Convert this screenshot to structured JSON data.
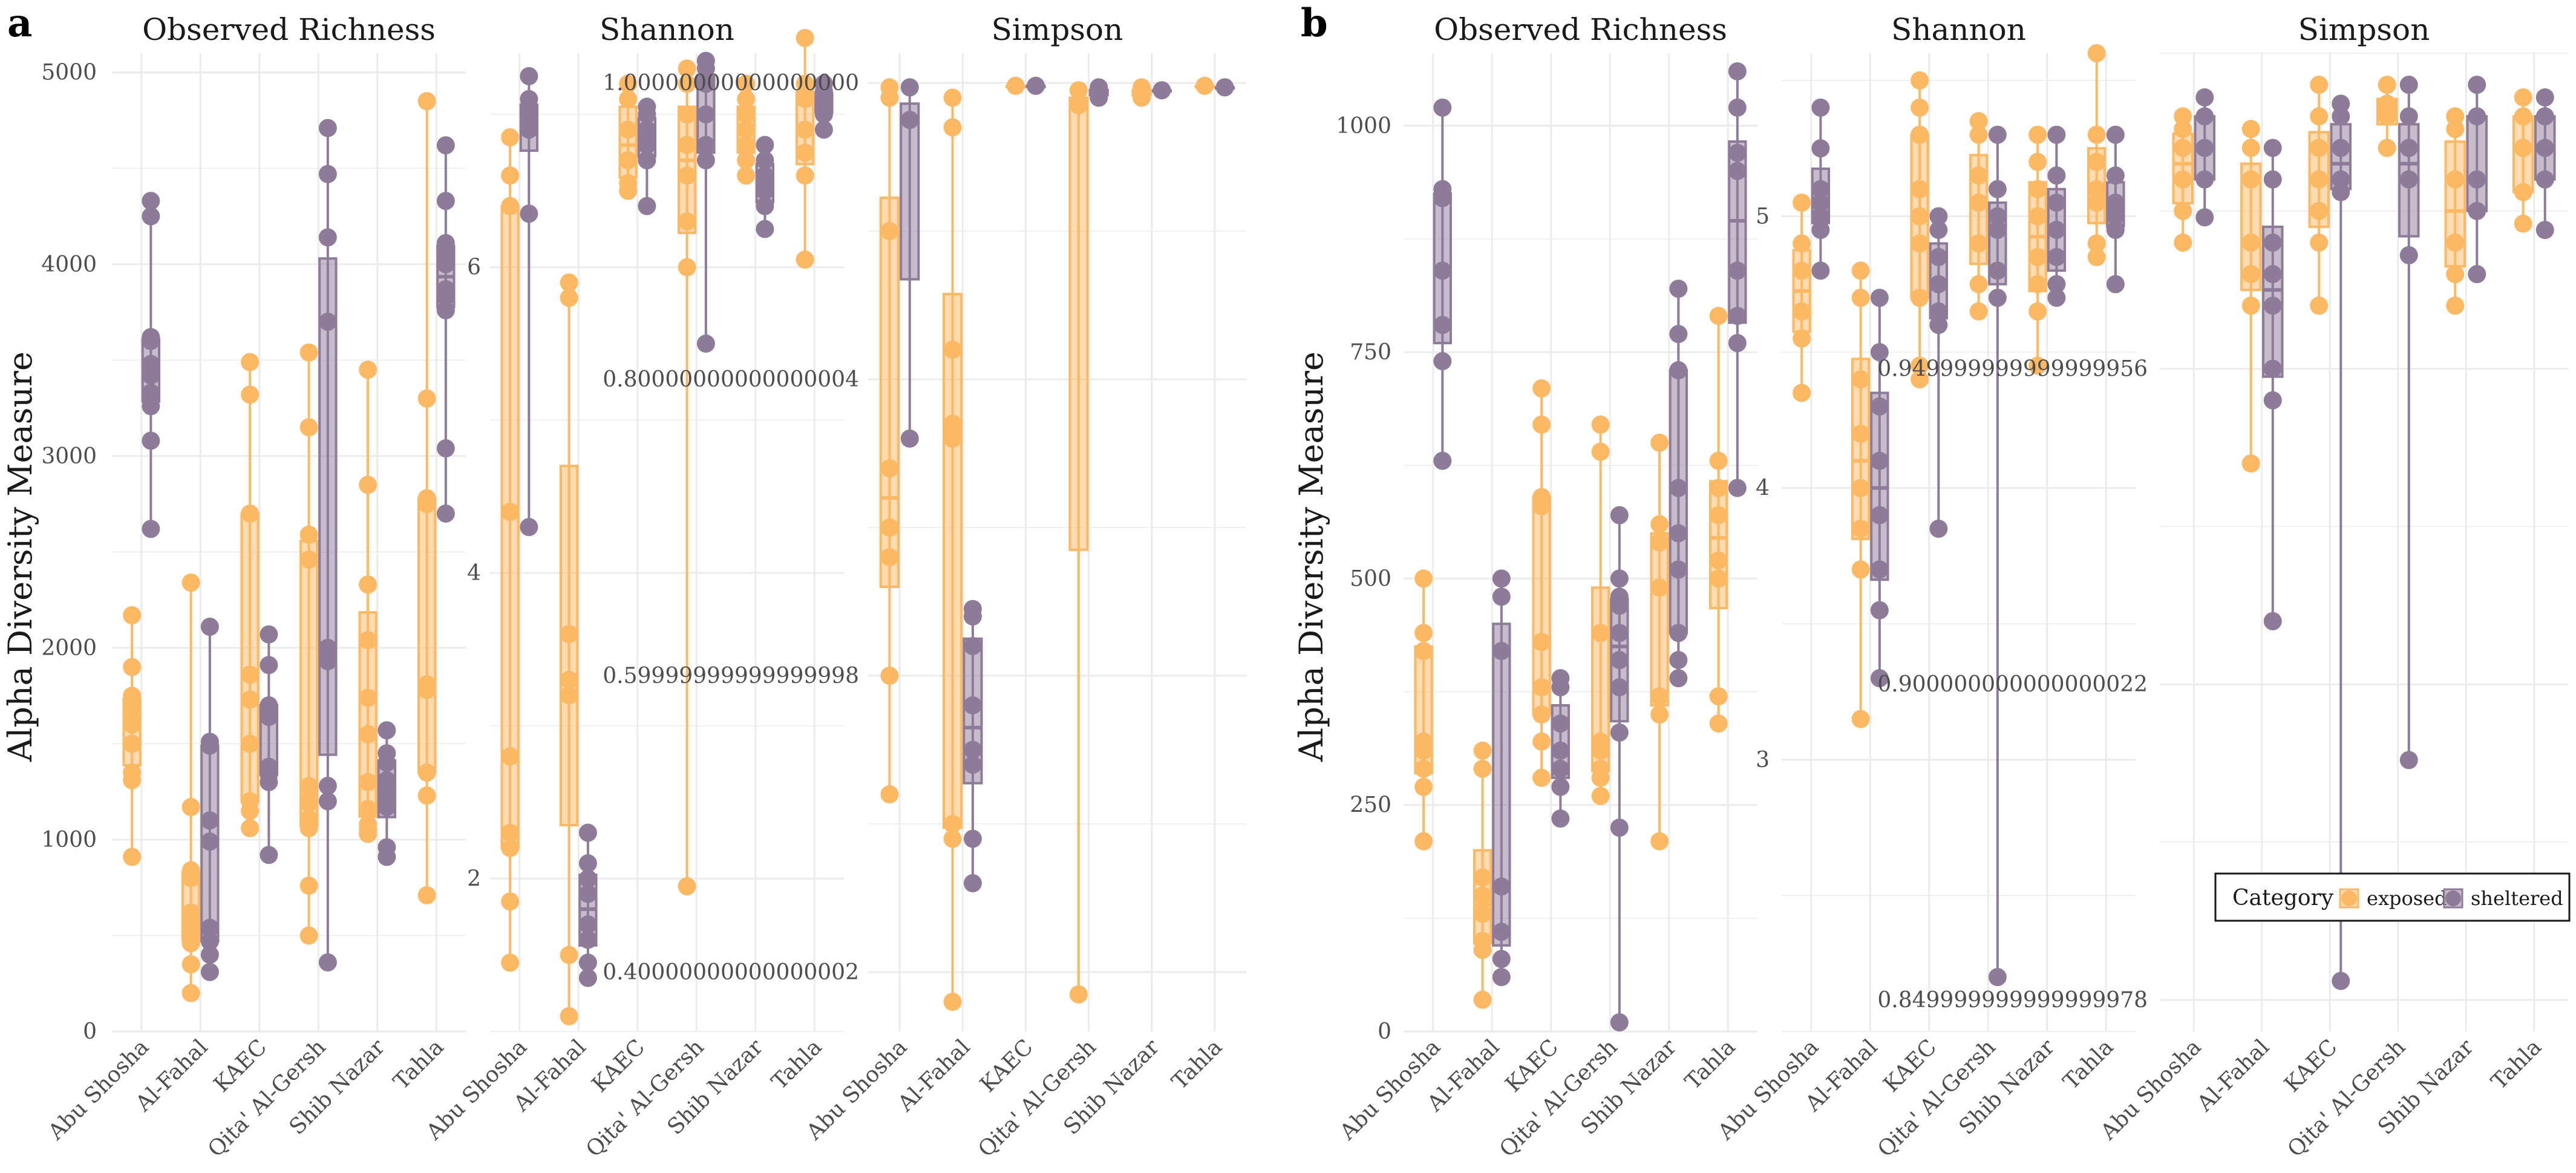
{
  "figure": {
    "panel_labels": [
      "a",
      "b"
    ],
    "y_axis_label": "Alpha Diversity Measure",
    "colors": {
      "exposed": "#FDB863",
      "sheltered": "#8E7A99",
      "grid": "#EBEBEB",
      "tick_text": "#4D4D4D"
    },
    "legend": {
      "title": "Category",
      "items": [
        "exposed",
        "sheltered"
      ]
    }
  },
  "chart_data": [
    {
      "type": "box",
      "panel": "a",
      "facet": "Observed Richness",
      "categories": [
        "Abu Shosha",
        "Al-Fahal",
        "KAEC",
        "Qita' Al-Gersh",
        "Shib Nazar",
        "Tahla"
      ],
      "ylim": [
        0,
        5100
      ],
      "yticks": [
        0,
        1000,
        2000,
        3000,
        4000,
        5000
      ],
      "series": [
        {
          "name": "exposed",
          "points": [
            [
              910,
              1310,
              1350,
              1500,
              1600,
              1620,
              1690,
              1750,
              1900,
              2170
            ],
            [
              200,
              350,
              460,
              520,
              580,
              620,
              800,
              840,
              1170,
              2340
            ],
            [
              1060,
              1150,
              1200,
              1500,
              1730,
              1860,
              2700,
              3320,
              3490
            ],
            [
              500,
              760,
              1060,
              1110,
              1190,
              1280,
              2460,
              2590,
              3150,
              3540
            ],
            [
              1030,
              1050,
              1080,
              1160,
              1300,
              1550,
              1740,
              2040,
              2330,
              2850,
              3450
            ],
            [
              710,
              1230,
              1350,
              1780,
              1810,
              2750,
              2780,
              3300,
              4850
            ]
          ]
        },
        {
          "name": "sheltered",
          "points": [
            [
              2620,
              3080,
              3260,
              3310,
              3330,
              3420,
              3480,
              3600,
              3620,
              4250,
              4330
            ],
            [
              310,
              400,
              470,
              540,
              990,
              1100,
              1490,
              1510,
              2110
            ],
            [
              920,
              1300,
              1340,
              1380,
              1640,
              1680,
              1700,
              1910,
              2070
            ],
            [
              360,
              1200,
              1280,
              1930,
              1980,
              2000,
              3700,
              4140,
              4470,
              4710
            ],
            [
              910,
              960,
              1170,
              1230,
              1310,
              1400,
              1450,
              1570
            ],
            [
              2700,
              3040,
              3760,
              3830,
              3870,
              4000,
              4050,
              4110,
              4330,
              4620
            ]
          ]
        }
      ]
    },
    {
      "type": "box",
      "panel": "a",
      "facet": "Shannon",
      "categories": [
        "Abu Shosha",
        "Al-Fahal",
        "KAEC",
        "Qita' Al-Gersh",
        "Shib Nazar",
        "Tahla"
      ],
      "ylim": [
        1.0,
        7.4
      ],
      "yticks": [
        2,
        4,
        6
      ],
      "series": [
        {
          "name": "exposed",
          "points": [
            [
              1.45,
              1.85,
              2.2,
              2.3,
              2.8,
              4.4,
              6.4,
              6.6,
              6.85
            ],
            [
              1.1,
              1.5,
              3.2,
              3.3,
              3.6,
              5.8,
              5.9
            ],
            [
              6.5,
              6.55,
              6.7,
              6.9,
              7.1,
              7.2
            ],
            [
              1.95,
              6.0,
              6.3,
              6.6,
              6.8,
              7.0,
              7.2,
              7.3
            ],
            [
              6.6,
              6.7,
              6.8,
              6.9,
              7.0,
              7.1,
              7.2
            ],
            [
              6.05,
              6.6,
              6.75,
              6.9,
              7.1,
              7.2,
              7.5
            ]
          ]
        },
        {
          "name": "sheltered",
          "points": [
            [
              4.3,
              6.35,
              6.9,
              6.95,
              7.0,
              7.05,
              7.1,
              7.25
            ],
            [
              1.35,
              1.45,
              1.6,
              1.7,
              1.9,
              2.0,
              2.1,
              2.3
            ],
            [
              6.4,
              6.7,
              6.8,
              6.9,
              7.0,
              7.05
            ],
            [
              5.5,
              6.7,
              6.8,
              7.0,
              7.2,
              7.3,
              7.35
            ],
            [
              6.25,
              6.4,
              6.5,
              6.6,
              6.7,
              6.8
            ],
            [
              6.9,
              7.0,
              7.05,
              7.1,
              7.15,
              7.2
            ]
          ]
        }
      ]
    },
    {
      "type": "box",
      "panel": "a",
      "facet": "Simpson",
      "categories": [
        "Abu Shosha",
        "Al-Fahal",
        "KAEC",
        "Qita' Al-Gersh",
        "Shib Nazar",
        "Tahla"
      ],
      "ylim": [
        0.36,
        1.02
      ],
      "yticks": [
        0.4,
        0.6,
        0.8,
        1.0
      ],
      "series": [
        {
          "name": "exposed",
          "points": [
            [
              0.52,
              0.6,
              0.68,
              0.7,
              0.74,
              0.9,
              0.99,
              0.997
            ],
            [
              0.38,
              0.49,
              0.5,
              0.76,
              0.77,
              0.82,
              0.97,
              0.99
            ],
            [
              0.998
            ],
            [
              0.385,
              0.985,
              0.995
            ],
            [
              0.99,
              0.997
            ],
            [
              0.998
            ]
          ]
        },
        {
          "name": "sheltered",
          "points": [
            [
              0.76,
              0.975,
              0.997
            ],
            [
              0.46,
              0.49,
              0.54,
              0.55,
              0.58,
              0.62,
              0.64,
              0.645
            ],
            [
              0.998
            ],
            [
              0.99,
              0.997
            ],
            [
              0.995
            ],
            [
              0.997
            ]
          ]
        }
      ]
    },
    {
      "type": "box",
      "panel": "b",
      "facet": "Observed Richness",
      "categories": [
        "Abu Shosha",
        "Al-Fahal",
        "KAEC",
        "Qita' Al-Gersh",
        "Shib Nazar",
        "Tahla"
      ],
      "ylim": [
        0,
        1080
      ],
      "yticks": [
        0,
        250,
        500,
        750,
        1000
      ],
      "series": [
        {
          "name": "exposed",
          "points": [
            [
              210,
              270,
              290,
              310,
              320,
              420,
              440,
              500
            ],
            [
              35,
              90,
              100,
              130,
              150,
              170,
              290,
              310
            ],
            [
              280,
              320,
              350,
              380,
              430,
              580,
              590,
              670,
              710
            ],
            [
              260,
              280,
              290,
              310,
              320,
              440,
              640,
              670
            ],
            [
              210,
              350,
              370,
              490,
              540,
              560,
              650
            ],
            [
              340,
              370,
              500,
              520,
              570,
              600,
              630,
              790
            ]
          ]
        },
        {
          "name": "sheltered",
          "points": [
            [
              630,
              740,
              780,
              840,
              920,
              930,
              1020
            ],
            [
              60,
              80,
              110,
              160,
              420,
              480,
              500
            ],
            [
              235,
              270,
              290,
              310,
              340,
              380,
              390
            ],
            [
              10,
              225,
              330,
              380,
              410,
              440,
              470,
              480,
              500,
              570
            ],
            [
              390,
              410,
              440,
              510,
              550,
              600,
              730,
              770,
              820
            ],
            [
              600,
              760,
              790,
              840,
              950,
              970,
              1020,
              1060
            ]
          ]
        }
      ]
    },
    {
      "type": "box",
      "panel": "b",
      "facet": "Shannon",
      "categories": [
        "Abu Shosha",
        "Al-Fahal",
        "KAEC",
        "Qita' Al-Gersh",
        "Shib Nazar",
        "Tahla"
      ],
      "ylim": [
        2.0,
        5.6
      ],
      "yticks": [
        3,
        4,
        5
      ],
      "series": [
        {
          "name": "exposed",
          "points": [
            [
              4.35,
              4.55,
              4.65,
              4.8,
              4.9,
              5.05
            ],
            [
              3.15,
              3.7,
              3.85,
              4.0,
              4.2,
              4.4,
              4.7,
              4.8
            ],
            [
              4.4,
              4.45,
              4.7,
              4.9,
              5.0,
              5.1,
              5.3,
              5.4,
              5.5
            ],
            [
              4.65,
              4.75,
              4.9,
              5.05,
              5.15,
              5.3,
              5.35
            ],
            [
              4.45,
              4.65,
              4.75,
              4.85,
              5.0,
              5.1,
              5.2,
              5.3
            ],
            [
              4.85,
              4.9,
              5.05,
              5.1,
              5.2,
              5.3,
              5.6
            ]
          ]
        },
        {
          "name": "sheltered",
          "points": [
            [
              4.8,
              4.95,
              5.0,
              5.05,
              5.1,
              5.25,
              5.4
            ],
            [
              3.3,
              3.55,
              3.7,
              3.9,
              4.1,
              4.3,
              4.5,
              4.7
            ],
            [
              3.85,
              4.6,
              4.65,
              4.75,
              4.85,
              4.95,
              5.0
            ],
            [
              2.2,
              4.7,
              4.8,
              4.95,
              5.0,
              5.1,
              5.3
            ],
            [
              4.7,
              4.75,
              4.85,
              4.95,
              5.05,
              5.15,
              5.3
            ],
            [
              4.75,
              4.95,
              5.0,
              5.05,
              5.15,
              5.3
            ]
          ]
        }
      ]
    },
    {
      "type": "box",
      "panel": "b",
      "facet": "Simpson",
      "categories": [
        "Abu Shosha",
        "Al-Fahal",
        "KAEC",
        "Qita' Al-Gersh",
        "Shib Nazar",
        "Tahla"
      ],
      "ylim": [
        0.845,
        1.0
      ],
      "yticks": [
        0.85,
        0.9,
        0.95
      ],
      "series": [
        {
          "name": "exposed",
          "points": [
            [
              0.97,
              0.975,
              0.98,
              0.985,
              0.988,
              0.99
            ],
            [
              0.935,
              0.96,
              0.965,
              0.97,
              0.98,
              0.985,
              0.988
            ],
            [
              0.96,
              0.97,
              0.975,
              0.98,
              0.985,
              0.99,
              0.995
            ],
            [
              0.985,
              0.99,
              0.992,
              0.995
            ],
            [
              0.96,
              0.965,
              0.97,
              0.98,
              0.988,
              0.99
            ],
            [
              0.973,
              0.978,
              0.985,
              0.99,
              0.993
            ]
          ]
        },
        {
          "name": "sheltered",
          "points": [
            [
              0.974,
              0.98,
              0.985,
              0.99,
              0.993
            ],
            [
              0.91,
              0.945,
              0.95,
              0.96,
              0.965,
              0.97,
              0.98,
              0.985
            ],
            [
              0.853,
              0.978,
              0.98,
              0.985,
              0.99,
              0.992
            ],
            [
              0.888,
              0.968,
              0.98,
              0.985,
              0.99,
              0.995
            ],
            [
              0.965,
              0.975,
              0.98,
              0.99,
              0.995
            ],
            [
              0.972,
              0.98,
              0.985,
              0.99,
              0.993
            ]
          ]
        }
      ]
    }
  ]
}
